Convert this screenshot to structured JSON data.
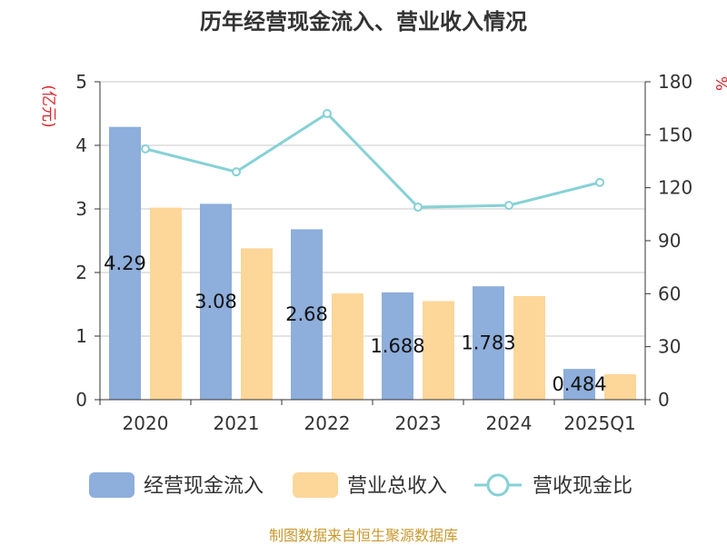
{
  "chart_data": {
    "type": "bar",
    "title": "历年经营现金流入、营业收入情况",
    "categories": [
      "2020",
      "2021",
      "2022",
      "2023",
      "2024",
      "2025Q1"
    ],
    "series": [
      {
        "name": "经营现金流入",
        "type": "bar",
        "axis": "left",
        "color": "#8eaedb",
        "values": [
          4.29,
          3.08,
          2.68,
          1.688,
          1.783,
          0.484
        ],
        "labels": [
          "4.29",
          "3.08",
          "2.68",
          "1.688",
          "1.783",
          "0.484"
        ]
      },
      {
        "name": "营业总收入",
        "type": "bar",
        "axis": "left",
        "color": "#fdd699",
        "values": [
          3.02,
          2.38,
          1.67,
          1.55,
          1.63,
          0.4
        ]
      },
      {
        "name": "营收现金比",
        "type": "line",
        "axis": "right",
        "color": "#86d1d5",
        "values": [
          142,
          129,
          162,
          109,
          110,
          123
        ]
      }
    ],
    "y_left": {
      "unit": "(亿元)",
      "min": 0,
      "max": 5,
      "ticks": [
        0,
        1,
        2,
        3,
        4,
        5
      ]
    },
    "y_right": {
      "unit": "%",
      "min": 0,
      "max": 180,
      "ticks": [
        0,
        30,
        60,
        90,
        120,
        150,
        180
      ]
    },
    "grid": true,
    "legend_position": "bottom"
  },
  "source": "制图数据来自恒生聚源数据库"
}
